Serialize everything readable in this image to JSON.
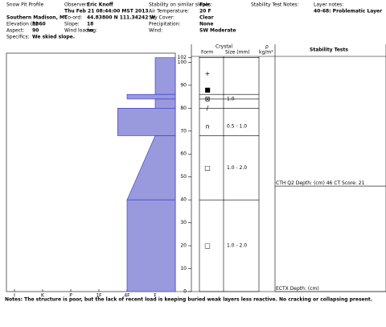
{
  "header": {
    "title": "Snow Pit Profile",
    "location": "Southern Madison, MT",
    "left_fields": [
      {
        "label": "Elevation (ft)",
        "value": "8860"
      },
      {
        "label": "Aspect:",
        "value": "90"
      },
      {
        "label": "Specifics:",
        "value": "We skied slope."
      }
    ],
    "observer_label": "Observer:",
    "observer": "Eric Knoff",
    "date": "Thu Feb 21 08:44:00 MST 2013",
    "mid_fields": [
      {
        "label": "Co-ord:",
        "value": "44.83800 N 111.34242 W"
      },
      {
        "label": "Slope:",
        "value": "18"
      },
      {
        "label": "Wind loading:",
        "value": "no"
      }
    ],
    "weather_fields": [
      {
        "label": "Stability on similar slopes:",
        "value": "Fair"
      },
      {
        "label": "Air Temperature:",
        "value": "20 F"
      },
      {
        "label": "Sky Cover:",
        "value": "Clear"
      },
      {
        "label": "Precipitation:",
        "value": "None"
      },
      {
        "label": "Wind:",
        "value": "SW Moderate"
      }
    ],
    "stability_notes_label": "Stability Test Notes:",
    "layer_notes_label": "Layer notes:",
    "layer_notes": "40-68: Problematic Layer"
  },
  "profile": {
    "columns": {
      "crystal": "Crystal",
      "form": "Form",
      "size": "Size (mm)",
      "density": "ρ",
      "density_unit": "kg/m³",
      "tests": "Stability Tests"
    },
    "depth_range": [
      0,
      104
    ],
    "depth_ticks": [
      0,
      10,
      20,
      30,
      40,
      50,
      60,
      70,
      80,
      90,
      100,
      102
    ],
    "hardness_labels": [
      "I",
      "K",
      "P",
      "1F",
      "4F",
      "F"
    ],
    "layers": [
      {
        "top": 102,
        "bottom": 86,
        "hardness_top": "F",
        "hardness_bottom": "F"
      },
      {
        "top": 86,
        "bottom": 84,
        "hardness_top": "4F",
        "hardness_bottom": "4F"
      },
      {
        "top": 84,
        "bottom": 80,
        "hardness_top": "F",
        "hardness_bottom": "F"
      },
      {
        "top": 80,
        "bottom": 68,
        "hardness_top": "4F+",
        "hardness_bottom": "4F+"
      },
      {
        "top": 68,
        "bottom": 40,
        "hardness_top": "F",
        "hardness_bottom": "4F"
      },
      {
        "top": 40,
        "bottom": 0,
        "hardness_top": "4F",
        "hardness_bottom": "4F"
      }
    ],
    "crystals": [
      {
        "depth": 95,
        "form": "+"
      },
      {
        "depth": 88,
        "form": "■"
      },
      {
        "depth": 84,
        "form": "⊠",
        "size": "1.0"
      },
      {
        "depth": 80,
        "form": "/"
      },
      {
        "depth": 72,
        "form": "∩",
        "size": "0.5 - 1.0"
      },
      {
        "depth": 54,
        "form": "□",
        "size": "1.0 - 2.0"
      },
      {
        "depth": 20,
        "form": "□",
        "size": "1.0 - 2.0"
      }
    ],
    "tests": [
      {
        "test": "CTH Q2",
        "depth_label": "Depth: (cm)",
        "depth": 46,
        "score_label": "CT Score:",
        "score": 21
      },
      {
        "test": "ECTX",
        "depth_label": "Depth: (cm)"
      }
    ]
  },
  "notes": "Notes: The structure is poor, but the lack of recent load is keeping buried weak layers less reactive.  No cracking or collapsing present."
}
